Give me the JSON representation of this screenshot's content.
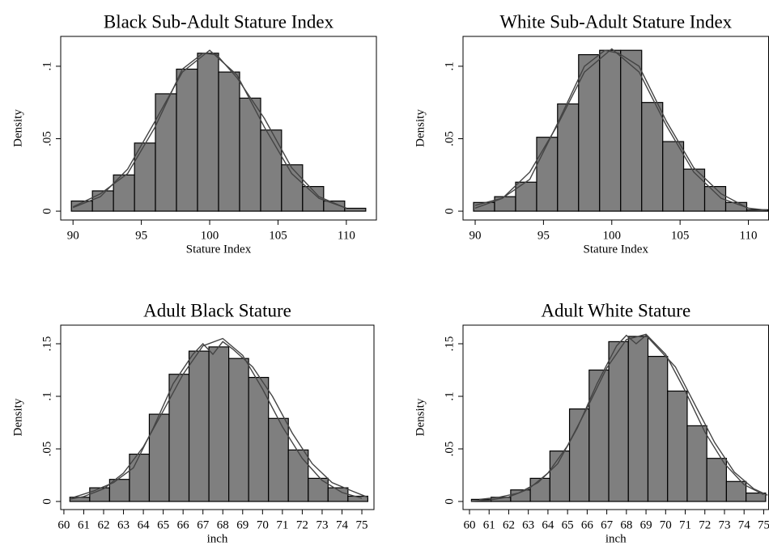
{
  "chart_data": [
    {
      "type": "histogram",
      "title": "Black Sub-Adult Stature Index",
      "x_label": "Stature Index",
      "y_label": "Density",
      "bins": [
        89.88,
        91.42,
        92.96,
        94.5,
        96.03,
        97.57,
        99.11,
        100.65,
        102.19,
        103.73,
        105.26,
        106.8,
        108.34,
        109.88,
        111.42
      ],
      "values": [
        0.007,
        0.014,
        0.025,
        0.047,
        0.081,
        0.098,
        0.109,
        0.096,
        0.078,
        0.056,
        0.032,
        0.017,
        0.007,
        0.002
      ],
      "color": "#7f7f7f",
      "curves": [
        {
          "x": [
            90,
            92,
            94,
            96,
            98,
            100,
            102,
            104,
            106,
            108,
            110
          ],
          "values": [
            0.0025,
            0.01,
            0.029,
            0.062,
            0.096,
            0.111,
            0.094,
            0.058,
            0.026,
            0.0088,
            0.0021
          ]
        },
        {
          "x": [
            90,
            92,
            94,
            96,
            98,
            99.5,
            100.5,
            102,
            104,
            106,
            108,
            110
          ],
          "values": [
            0.003,
            0.012,
            0.026,
            0.058,
            0.098,
            0.109,
            0.108,
            0.092,
            0.064,
            0.03,
            0.01,
            0.002
          ]
        }
      ],
      "xlim": [
        89.1,
        112.2
      ],
      "ylim": [
        -0.0061,
        0.1206
      ],
      "xticks": [
        90,
        95,
        100,
        105,
        110
      ],
      "yticks": [
        0,
        {
          "value": 0.05,
          "label": ".05"
        },
        {
          "value": 0.1,
          "label": ".1"
        }
      ]
    },
    {
      "type": "histogram",
      "title": "White Sub-Adult Stature Index",
      "x_label": "Stature Index",
      "y_label": "Density",
      "bins": [
        89.88,
        91.42,
        92.96,
        94.5,
        96.03,
        97.57,
        99.11,
        100.65,
        102.19,
        103.73,
        105.26,
        106.8,
        108.34,
        109.88,
        111.42
      ],
      "values": [
        0.006,
        0.01,
        0.02,
        0.051,
        0.074,
        0.108,
        0.111,
        0.111,
        0.075,
        0.048,
        0.029,
        0.017,
        0.006,
        0.001
      ],
      "color": "#7f7f7f",
      "curves": [
        {
          "x": [
            90,
            92,
            94,
            96,
            98,
            100,
            102,
            104,
            106,
            108,
            110,
            111.4
          ],
          "values": [
            0.0021,
            0.0089,
            0.027,
            0.059,
            0.096,
            0.112,
            0.096,
            0.059,
            0.027,
            0.0089,
            0.0021,
            0.0006
          ]
        },
        {
          "x": [
            90,
            92,
            94,
            96,
            98,
            99.5,
            100.5,
            102,
            104,
            106,
            108,
            110
          ],
          "values": [
            0.004,
            0.009,
            0.022,
            0.06,
            0.1,
            0.111,
            0.109,
            0.1,
            0.062,
            0.03,
            0.012,
            0.002
          ]
        }
      ],
      "xlim": [
        89.11,
        111.48
      ],
      "ylim": [
        -0.0061,
        0.1206
      ],
      "xticks": [
        90,
        95,
        100,
        105,
        110
      ],
      "yticks": [
        0,
        {
          "value": 0.05,
          "label": ".05"
        },
        {
          "value": 0.1,
          "label": ".1"
        }
      ]
    },
    {
      "type": "histogram",
      "title": "Adult Black Stature",
      "x_label": "inch",
      "y_label": "Density",
      "bins": [
        60.3,
        61.3,
        62.3,
        63.3,
        64.3,
        65.3,
        66.3,
        67.3,
        68.3,
        69.3,
        70.3,
        71.3,
        72.3,
        73.3,
        74.3,
        75.3
      ],
      "values": [
        0.004,
        0.013,
        0.021,
        0.045,
        0.083,
        0.121,
        0.143,
        0.147,
        0.136,
        0.118,
        0.079,
        0.049,
        0.022,
        0.013,
        0.005
      ],
      "color": "#7f7f7f",
      "curves": [
        {
          "x": [
            60.3,
            61,
            62,
            63,
            64,
            65,
            66,
            67,
            68,
            69,
            70,
            71,
            72,
            73,
            74,
            75
          ],
          "values": [
            0.0022,
            0.0047,
            0.012,
            0.027,
            0.052,
            0.086,
            0.121,
            0.148,
            0.155,
            0.139,
            0.107,
            0.071,
            0.041,
            0.02,
            0.0085,
            0.0031
          ]
        },
        {
          "x": [
            60.5,
            61.5,
            62.5,
            63.5,
            64.5,
            65.5,
            66.5,
            67,
            67.5,
            68,
            68.5,
            69.5,
            70.5,
            71.5,
            72.5,
            73.5,
            74.5,
            75.3
          ],
          "values": [
            0.004,
            0.01,
            0.018,
            0.032,
            0.07,
            0.112,
            0.14,
            0.15,
            0.14,
            0.152,
            0.145,
            0.128,
            0.1,
            0.065,
            0.036,
            0.018,
            0.01,
            0.004
          ]
        }
      ],
      "xlim": [
        59.84,
        75.61
      ],
      "ylim": [
        -0.0077,
        0.1677
      ],
      "xticks": [
        60,
        61,
        62,
        63,
        64,
        65,
        66,
        67,
        68,
        69,
        70,
        71,
        72,
        73,
        74,
        75
      ],
      "yticks": [
        0,
        {
          "value": 0.05,
          "label": ".05"
        },
        {
          "value": 0.1,
          "label": ".1"
        },
        {
          "value": 0.15,
          "label": ".15"
        }
      ]
    },
    {
      "type": "histogram",
      "title": "Adult White Stature",
      "x_label": "inch",
      "y_label": "Density",
      "bins": [
        60.1,
        61.1,
        62.1,
        63.1,
        64.1,
        65.1,
        66.1,
        67.1,
        68.1,
        69.1,
        70.1,
        71.1,
        72.1,
        73.1,
        74.1,
        75.1
      ],
      "values": [
        0.002,
        0.004,
        0.011,
        0.022,
        0.048,
        0.088,
        0.125,
        0.152,
        0.157,
        0.138,
        0.105,
        0.072,
        0.041,
        0.019,
        0.008
      ],
      "color": "#7f7f7f",
      "curves": [
        {
          "x": [
            60.1,
            61,
            62,
            63,
            64,
            65,
            66,
            67,
            68,
            69,
            70,
            71,
            72,
            73,
            74,
            75
          ],
          "values": [
            0.0004,
            0.0013,
            0.0043,
            0.0117,
            0.027,
            0.053,
            0.089,
            0.127,
            0.154,
            0.159,
            0.14,
            0.105,
            0.066,
            0.036,
            0.016,
            0.0065
          ]
        },
        {
          "x": [
            60.5,
            61.5,
            62.5,
            63.5,
            64.5,
            65.5,
            66.5,
            67.5,
            68,
            68.5,
            69,
            69.5,
            70.5,
            71.5,
            72.5,
            73.5,
            74.5,
            75.2
          ],
          "values": [
            0.002,
            0.004,
            0.008,
            0.018,
            0.036,
            0.07,
            0.112,
            0.148,
            0.158,
            0.15,
            0.158,
            0.148,
            0.128,
            0.092,
            0.056,
            0.028,
            0.012,
            0.006
          ]
        }
      ],
      "xlim": [
        59.67,
        75.25
      ],
      "ylim": [
        -0.0077,
        0.1677
      ],
      "xticks": [
        60,
        61,
        62,
        63,
        64,
        65,
        66,
        67,
        68,
        69,
        70,
        71,
        72,
        73,
        74,
        75
      ],
      "yticks": [
        0,
        {
          "value": 0.05,
          "label": ".05"
        },
        {
          "value": 0.1,
          "label": ".1"
        },
        {
          "value": 0.15,
          "label": ".15"
        }
      ]
    }
  ]
}
